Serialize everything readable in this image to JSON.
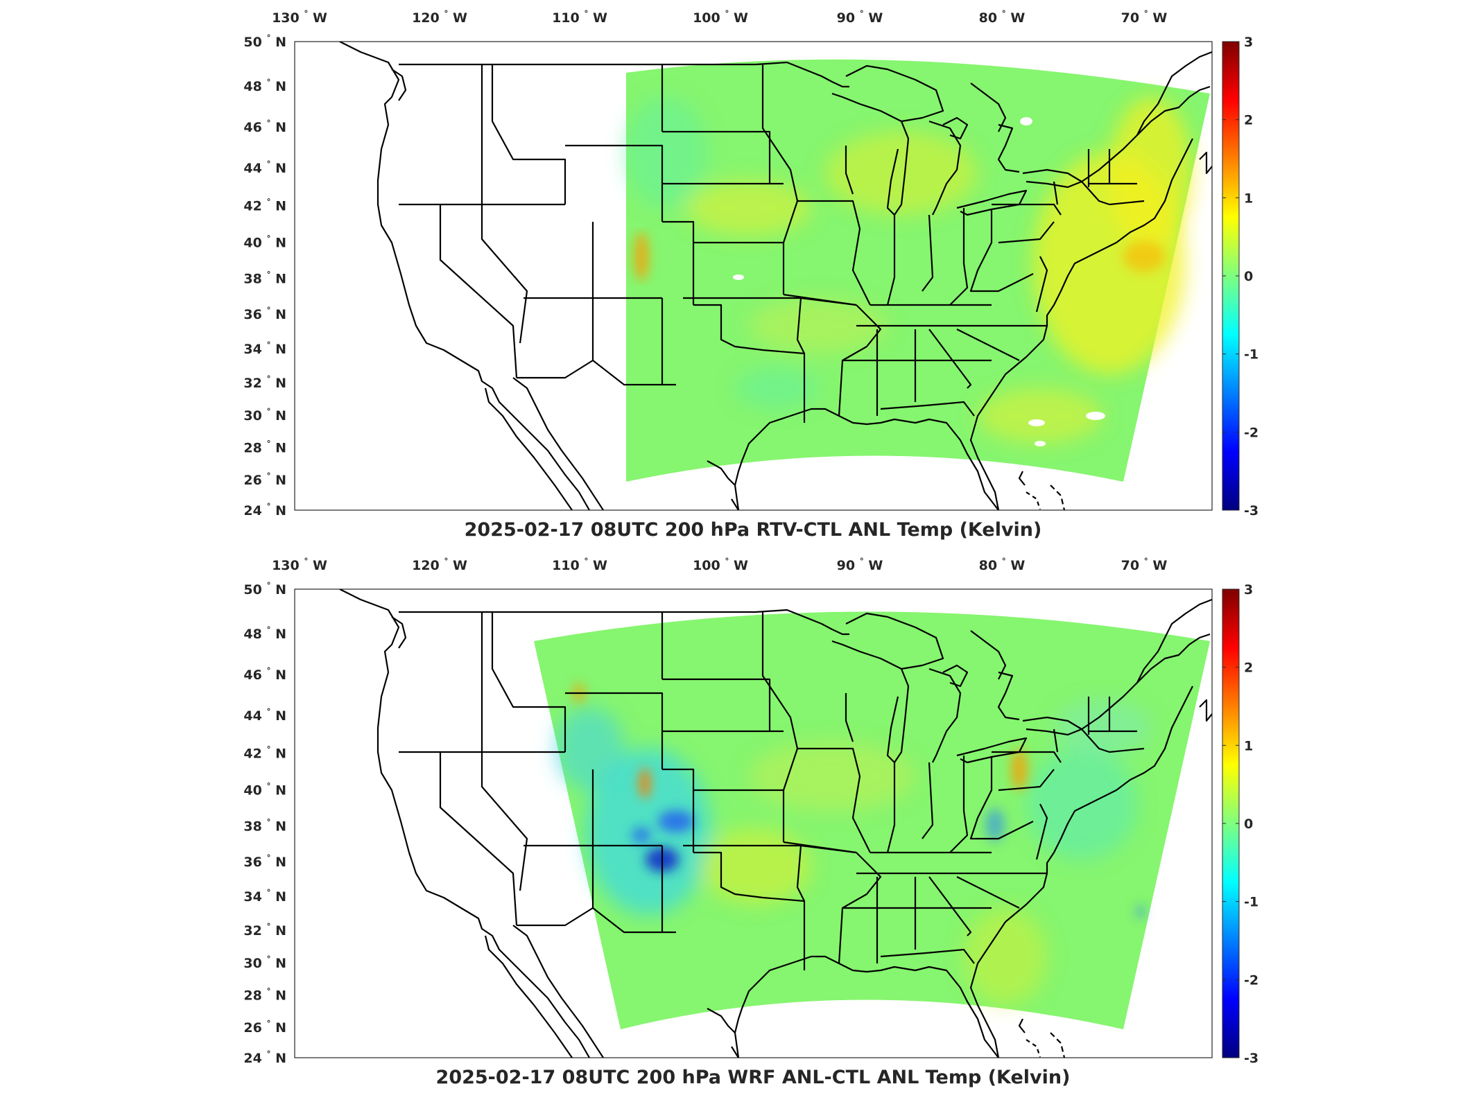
{
  "panels": [
    {
      "title": "2025-02-17 08UTC 200 hPa RTV-CTL ANL Temp (Kelvin)",
      "lon_labels": [
        "130",
        "120",
        "110",
        "100",
        "90",
        "80",
        "70"
      ],
      "lon_hemisphere": "W",
      "lat_labels": [
        "50",
        "48",
        "46",
        "44",
        "42",
        "40",
        "38",
        "36",
        "34",
        "32",
        "30",
        "28",
        "26",
        "24"
      ],
      "lat_hemisphere": "N",
      "colorbar": {
        "min": -3,
        "max": 3,
        "ticks": [
          "3",
          "2",
          "1",
          "0",
          "-1",
          "-2",
          "-3"
        ]
      },
      "field_west_lon": -107,
      "field_dominant_anomaly": "warm-yellow"
    },
    {
      "title": "2025-02-17 08UTC 200 hPa WRF ANL-CTL ANL Temp (Kelvin)",
      "lon_labels": [
        "130",
        "120",
        "110",
        "100",
        "90",
        "80",
        "70"
      ],
      "lon_hemisphere": "W",
      "lat_labels": [
        "50",
        "48",
        "46",
        "44",
        "42",
        "40",
        "38",
        "36",
        "34",
        "32",
        "30",
        "28",
        "26",
        "24"
      ],
      "lat_hemisphere": "N",
      "colorbar": {
        "min": -3,
        "max": 3,
        "ticks": [
          "3",
          "2",
          "1",
          "0",
          "-1",
          "-2",
          "-3"
        ]
      },
      "field_west_lon": -113,
      "field_dominant_anomaly": "cold-blue-over-rockies"
    }
  ],
  "colormap": "jet",
  "colors": {
    "coastline": "#000000",
    "background": "#ffffff"
  }
}
